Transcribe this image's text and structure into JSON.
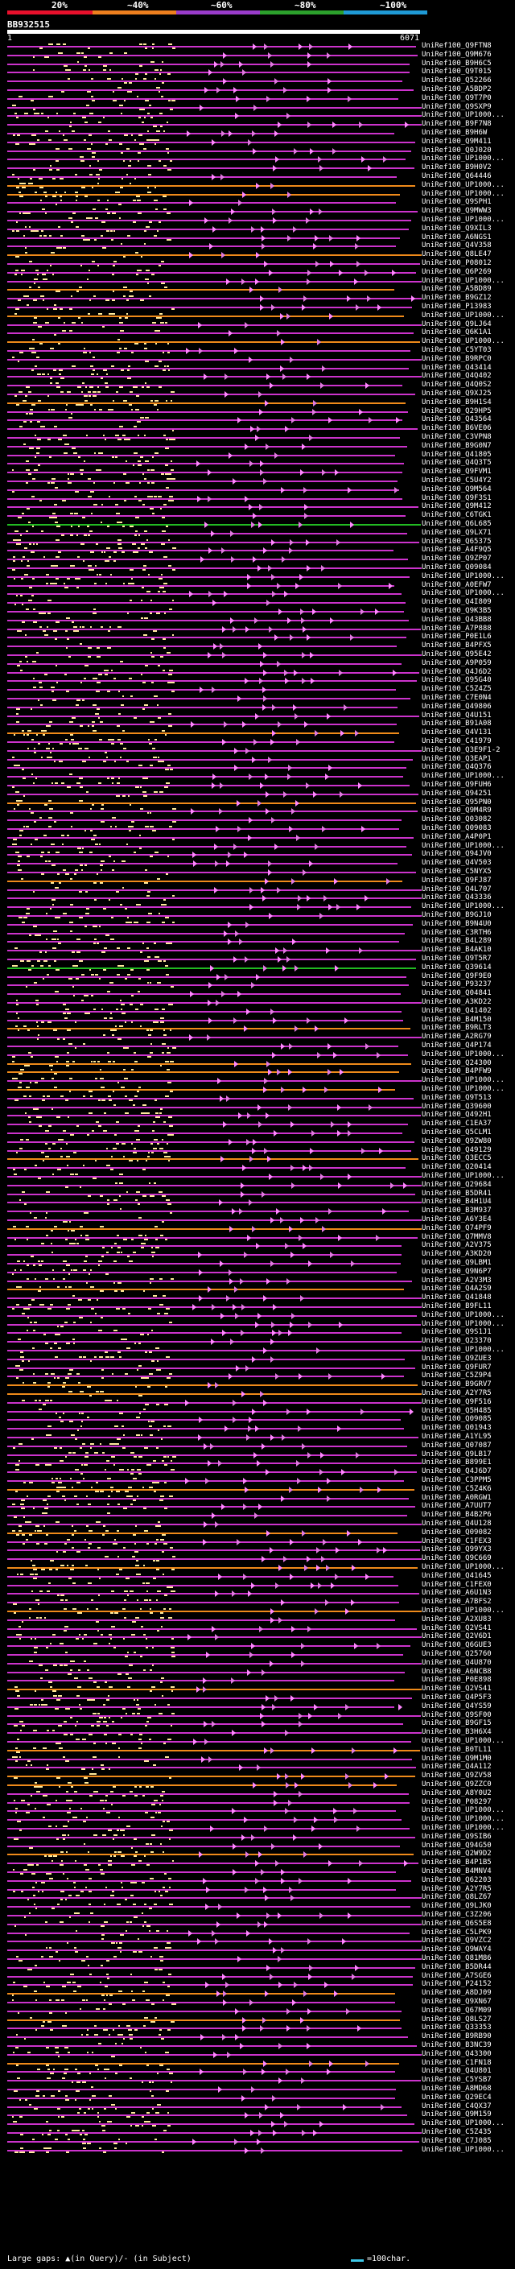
{
  "legend": {
    "ticks": [
      "20%",
      "~40%",
      "~60%",
      "~80%",
      "~100%"
    ],
    "colors": [
      "#e8102c",
      "#ee7f1e",
      "#9a3ccb",
      "#2ca02c",
      "#1f9ad6"
    ]
  },
  "query": {
    "id": "BB932515",
    "start": "1",
    "end": "6071"
  },
  "colors": {
    "hit": "#cc33cc",
    "hit_light": "#e07ae0",
    "orange": "#ef8a1a",
    "green": "#22bb22",
    "dash": "#ffeb9c",
    "arrow": "#ff88ff"
  },
  "hits": [
    "UniRef100_Q9FTN8",
    "UniRef100_Q9M676",
    "UniRef100_B9H6C5",
    "UniRef100_Q9T015",
    "UniRef100_Q52266",
    "UniRef100_A5BDP2",
    "UniRef100_Q9T7P0",
    "UniRef100_Q9SXP9",
    "UniRef100_UP1000...",
    "UniRef100_B9F7N8",
    "UniRef100_B9H6W",
    "UniRef100_Q9M411",
    "UniRef100_Q0J020",
    "UniRef100_UP1000...",
    "UniRef100_B9H0V2",
    "UniRef100_Q64446",
    "UniRef100_UP1000...",
    "UniRef100_UP1000...",
    "UniRef100_Q9SPH1",
    "UniRef100_Q9MWW3",
    "UniRef100_UP1000...",
    "UniRef100_Q9XIL3",
    "UniRef100_A6NGS1",
    "UniRef100_Q4V358",
    "UniRef100_Q8LE47",
    "UniRef100_P08012",
    "UniRef100_Q6P269",
    "UniRef100_UP1000...",
    "UniRef100_A5BD89",
    "UniRef100_B9GZ12",
    "UniRef100_P13983",
    "UniRef100_UP1000...",
    "UniRef100_Q9LJ64",
    "UniRef100_Q6K1A1",
    "UniRef100_UP1000...",
    "UniRef100_C5YT03",
    "UniRef100_B9RPC0",
    "UniRef100_Q43414",
    "UniRef100_Q4Q402",
    "UniRef100_Q4Q0S2",
    "UniRef100_Q9XJ25",
    "UniRef100_B9H1S4",
    "UniRef100_Q29HP5",
    "UniRef100_Q43564",
    "UniRef100_B6VE06",
    "UniRef100_C3VPN8",
    "UniRef100_B9G0N7",
    "UniRef100_Q41805",
    "UniRef100_Q4Q3T5",
    "UniRef100_Q9FVM1",
    "UniRef100_C5U4Y2",
    "UniRef100_Q9M564",
    "UniRef100_Q9F3S1",
    "UniRef100_Q9M412",
    "UniRef100_C6TGK1",
    "UniRef100_Q6L685",
    "UniRef100_Q9LX71",
    "UniRef100_Q65375",
    "UniRef100_A4F9Q5",
    "UniRef100_Q9ZP07",
    "UniRef100_Q09084",
    "UniRef100_UP1000...",
    "UniRef100_A0EFW7",
    "UniRef100_UP1000...",
    "UniRef100_Q4I809",
    "UniRef100_Q9K3B5",
    "UniRef100_Q43BB8",
    "UniRef100_A7P888",
    "UniRef100_P0E1L6",
    "UniRef100_B4PFX5",
    "UniRef100_Q95E42",
    "UniRef100_A9P059",
    "UniRef100_Q4J6D2",
    "UniRef100_Q95G40",
    "UniRef100_C5Z4Z5",
    "UniRef100_C7E0N4",
    "UniRef100_Q49806",
    "UniRef100_Q4U151",
    "UniRef100_B91A08",
    "UniRef100_Q4V131",
    "UniRef100_C41979",
    "UniRef100_Q3E9F1-2",
    "UniRef100_Q3EAP1",
    "UniRef100_Q4Q376",
    "UniRef100_UP1000...",
    "UniRef100_Q9FUH6",
    "UniRef100_Q94251",
    "UniRef100_Q95PN0",
    "UniRef100_Q9M4R9",
    "UniRef100_Q03082",
    "UniRef100_Q09083",
    "UniRef100_A4P0P1",
    "UniRef100_UP1000...",
    "UniRef100_Q94JV0",
    "UniRef100_Q4V503",
    "UniRef100_C5NYX5",
    "UniRef100_Q9FJ87",
    "UniRef100_Q4L707",
    "UniRef100_Q43336",
    "UniRef100_UP1000...",
    "UniRef100_B9GJ10",
    "UniRef100_B9N4U0",
    "UniRef100_C3RTH6",
    "UniRef100_B4L289",
    "UniRef100_B4AK10",
    "UniRef100_Q9T5R7",
    "UniRef100_Q39614",
    "UniRef100_Q9F9E0",
    "UniRef100_P93237",
    "UniRef100_Q04841",
    "UniRef100_A3KD22",
    "UniRef100_Q41402",
    "UniRef100_B4M150",
    "UniRef100_B9RLT3",
    "UniRef100_A2RG79",
    "UniRef100_Q4P174",
    "UniRef100_UP1000...",
    "UniRef100_Q24300",
    "UniRef100_B4PFW9",
    "UniRef100_UP1000...",
    "UniRef100_UP1000...",
    "UniRef100_Q9T513",
    "UniRef100_Q39600",
    "UniRef100_Q492H1",
    "UniRef100_C1EA37",
    "UniRef100_Q5CLM1",
    "UniRef100_Q9ZW80",
    "UniRef100_Q49129",
    "UniRef100_Q3ECC5",
    "UniRef100_Q20414",
    "UniRef100_UP1000...",
    "UniRef100_Q29684",
    "UniRef100_B5DR41",
    "UniRef100_B4H1U4",
    "UniRef100_B3M937",
    "UniRef100_A6Y3E4",
    "UniRef100_Q74PF9",
    "UniRef100_Q7MMV8",
    "UniRef100_A2V375",
    "UniRef100_A3KD20",
    "UniRef100_Q9LBM1",
    "UniRef100_Q9N6P7",
    "UniRef100_A2V3M3",
    "UniRef100_Q4A2S9",
    "UniRef100_Q41848",
    "UniRef100_B9FL11",
    "UniRef100_UP1000...",
    "UniRef100_UP1000...",
    "UniRef100_Q9S1J1",
    "UniRef100_Q23370",
    "UniRef100_UP1000...",
    "UniRef100_Q9ZUE3",
    "UniRef100_Q9FUR7",
    "UniRef100_C5Z9P4",
    "UniRef100_B9GRV7",
    "UniRef100_A2Y7R5",
    "UniRef100_Q9F516",
    "UniRef100_Q5H485",
    "UniRef100_Q09085",
    "UniRef100_Q01943",
    "UniRef100_A1YL95",
    "UniRef100_Q07087",
    "UniRef100_Q9LB17",
    "UniRef100_B899E1",
    "UniRef100_Q4J6D7",
    "UniRef100_C3PPM5",
    "UniRef100_C5Z4K6",
    "UniRef100_A0RGW1",
    "UniRef100_A7UUT7",
    "UniRef100_B4B2P6",
    "UniRef100_Q4U128",
    "UniRef100_Q09082",
    "UniRef100_C1FEX3",
    "UniRef100_Q99YX3",
    "UniRef100_Q9C669",
    "UniRef100_UP1000...",
    "UniRef100_Q41645",
    "UniRef100_C1FEX0",
    "UniRef100_A6U1N3",
    "UniRef100_A7BFS2",
    "UniRef100_UP1000...",
    "UniRef100_A2XU83",
    "UniRef100_Q2VS41",
    "UniRef100_Q2V6D1",
    "UniRef100_Q6GUE3",
    "UniRef100_Q25760",
    "UniRef100_Q4U870",
    "UniRef100_A6NCB8",
    "UniRef100_P0E898",
    "UniRef100_Q2VS41",
    "UniRef100_Q4P5F3",
    "UniRef100_Q4YS59",
    "UniRef100_Q9SF00",
    "UniRef100_B9GF15",
    "UniRef100_B3H6X4",
    "UniRef100_UP1000...",
    "UniRef100_B0TL11",
    "UniRef100_Q9M1M0",
    "UniRef100_Q4A112",
    "UniRef100_Q9ZV58",
    "UniRef100_Q9ZZC0",
    "UniRef100_A8Y0U2",
    "UniRef100_P08297",
    "UniRef100_UP1000...",
    "UniRef100_UP1000...",
    "UniRef100_UP1000...",
    "UniRef100_Q9SIB6",
    "UniRef100_Q94G50",
    "UniRef100_Q2W9D2",
    "UniRef100_B4P1B5",
    "UniRef100_B4MNV4",
    "UniRef100_Q62203",
    "UniRef100_A2Y7R5",
    "UniRef100_Q8LZ67",
    "UniRef100_Q9LJK0",
    "UniRef100_C3Z206",
    "UniRef100_Q6S5E8",
    "UniRef100_C5LPK9",
    "UniRef100_Q9VZC2",
    "UniRef100_Q9WAY4",
    "UniRef100_Q81M86",
    "UniRef100_B5DR44",
    "UniRef100_A7SGE6",
    "UniRef100_P24152",
    "UniRef100_A8DJ09",
    "UniRef100_Q9XN67",
    "UniRef100_Q67M09",
    "UniRef100_Q8LS27",
    "UniRef100_Q33353",
    "UniRef100_B9RB90",
    "UniRef100_B3NC39",
    "UniRef100_Q43300",
    "UniRef100_C1FN18",
    "UniRef100_Q4U801",
    "UniRef100_C5YSB7",
    "UniRef100_A8MD68",
    "UniRef100_Q29EC4",
    "UniRef100_C4QX37",
    "UniRef100_Q9M159",
    "UniRef100_UP1000...",
    "UniRef100_C5Z435",
    "UniRef100_C7J085",
    "UniRef100_UP1000..."
  ],
  "footer": {
    "left": "Large gaps: ▲(in Query)/- (in Subject)",
    "right": "=100char."
  }
}
